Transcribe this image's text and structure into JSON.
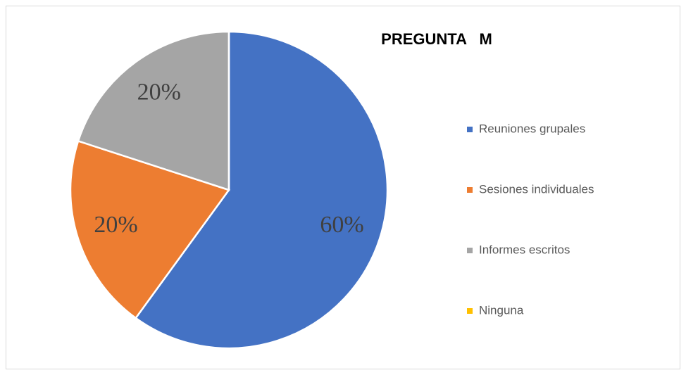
{
  "chart_data": {
    "type": "pie",
    "title": "PREGUNTA   M",
    "categories": [
      "Reuniones grupales",
      "Sesiones individuales",
      "Informes escritos",
      "Ninguna"
    ],
    "values": [
      60,
      20,
      20,
      0
    ],
    "value_labels": [
      "60%",
      "20%",
      "20%",
      null
    ],
    "colors": [
      "#4472c4",
      "#ed7d31",
      "#a5a5a5",
      "#ffc000"
    ],
    "legend": "right"
  }
}
